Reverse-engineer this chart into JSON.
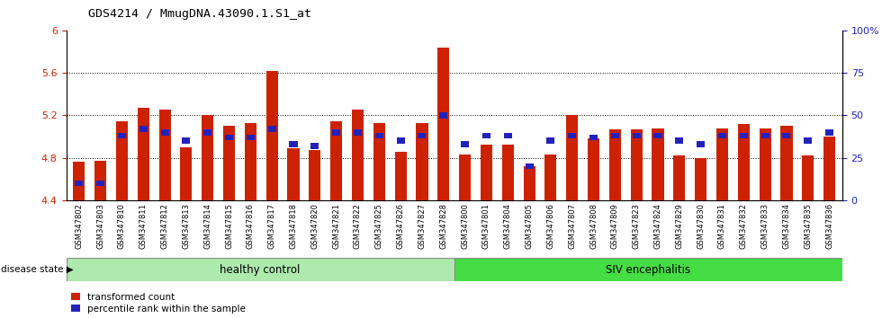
{
  "title": "GDS4214 / MmugDNA.43090.1.S1_at",
  "samples": [
    "GSM347802",
    "GSM347803",
    "GSM347810",
    "GSM347811",
    "GSM347812",
    "GSM347813",
    "GSM347814",
    "GSM347815",
    "GSM347816",
    "GSM347817",
    "GSM347818",
    "GSM347820",
    "GSM347821",
    "GSM347822",
    "GSM347825",
    "GSM347826",
    "GSM347827",
    "GSM347828",
    "GSM347800",
    "GSM347801",
    "GSM347804",
    "GSM347805",
    "GSM347806",
    "GSM347807",
    "GSM347808",
    "GSM347809",
    "GSM347823",
    "GSM347824",
    "GSM347829",
    "GSM347830",
    "GSM347831",
    "GSM347832",
    "GSM347833",
    "GSM347834",
    "GSM347835",
    "GSM347836"
  ],
  "red_values": [
    4.76,
    4.77,
    5.14,
    5.27,
    5.25,
    4.9,
    5.2,
    5.1,
    5.13,
    5.62,
    4.89,
    4.87,
    5.14,
    5.25,
    5.13,
    4.86,
    5.13,
    5.84,
    4.83,
    4.92,
    4.92,
    4.72,
    4.83,
    5.2,
    4.98,
    5.07,
    5.07,
    5.08,
    4.82,
    4.8,
    5.08,
    5.12,
    5.08,
    5.1,
    4.82,
    5.0
  ],
  "blue_values_pct": [
    10,
    10,
    38,
    42,
    40,
    35,
    40,
    37,
    37,
    42,
    33,
    32,
    40,
    40,
    38,
    35,
    38,
    50,
    33,
    38,
    38,
    20,
    35,
    38,
    37,
    38,
    38,
    38,
    35,
    33,
    38,
    38,
    38,
    38,
    35,
    40
  ],
  "group1_count": 18,
  "group1_label": "healthy control",
  "group2_label": "SIV encephalitis",
  "group1_color": "#aeeaae",
  "group2_color": "#44dd44",
  "bar_color": "#CC2200",
  "blue_color": "#2222BB",
  "ylim_left": [
    4.4,
    6.0
  ],
  "ylim_right": [
    0,
    100
  ],
  "yticks_left": [
    4.4,
    4.8,
    5.2,
    5.6,
    6.0
  ],
  "yticks_right": [
    0,
    25,
    50,
    75,
    100
  ],
  "ytick_labels_left": [
    "4.4",
    "4.8",
    "5.2",
    "5.6",
    "6"
  ],
  "ytick_labels_right": [
    "0",
    "25",
    "50",
    "75",
    "100%"
  ],
  "grid_values": [
    4.8,
    5.2,
    5.6
  ],
  "legend_labels": [
    "transformed count",
    "percentile rank within the sample"
  ],
  "disease_state_label": "disease state",
  "background_color": "#FFFFFF"
}
